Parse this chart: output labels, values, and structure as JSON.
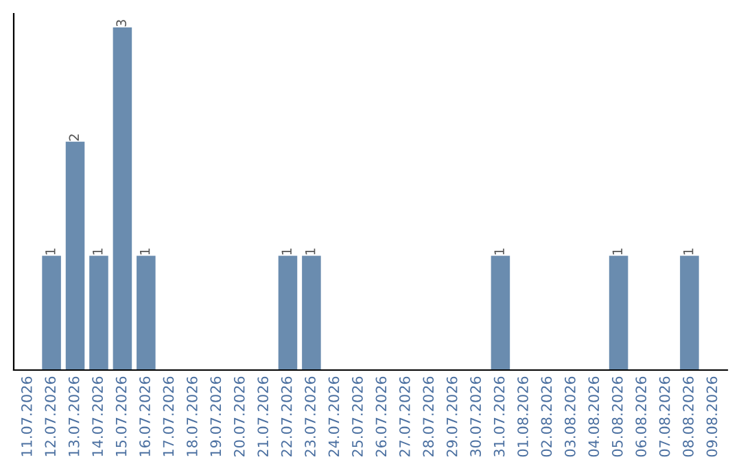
{
  "chart_data": {
    "type": "bar",
    "categories": [
      "11.07.2026",
      "12.07.2026",
      "13.07.2026",
      "14.07.2026",
      "15.07.2026",
      "16.07.2026",
      "17.07.2026",
      "18.07.2026",
      "19.07.2026",
      "20.07.2026",
      "21.07.2026",
      "22.07.2026",
      "23.07.2026",
      "24.07.2026",
      "25.07.2026",
      "26.07.2026",
      "27.07.2026",
      "28.07.2026",
      "29.07.2026",
      "30.07.2026",
      "31.07.2026",
      "01.08.2026",
      "02.08.2026",
      "03.08.2026",
      "04.08.2026",
      "05.08.2026",
      "06.08.2026",
      "07.08.2026",
      "08.08.2026",
      "09.08.2026"
    ],
    "values": [
      0,
      1,
      2,
      1,
      3,
      1,
      0,
      0,
      0,
      0,
      0,
      1,
      1,
      0,
      0,
      0,
      0,
      0,
      0,
      0,
      1,
      0,
      0,
      0,
      0,
      1,
      0,
      0,
      1,
      0
    ],
    "value_labels": [
      null,
      "1",
      "2",
      "1",
      "3",
      "1",
      null,
      null,
      null,
      null,
      null,
      "1",
      "1",
      null,
      null,
      null,
      null,
      null,
      null,
      null,
      "1",
      null,
      null,
      null,
      null,
      "1",
      null,
      null,
      "1",
      null
    ],
    "color": "#6a8caf",
    "grid": false,
    "legend": false
  }
}
